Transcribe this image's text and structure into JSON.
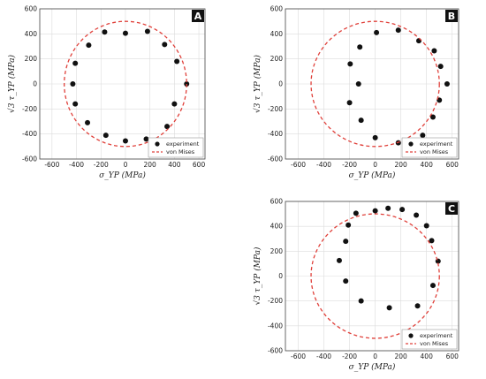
{
  "chart_data": [
    {
      "type": "scatter",
      "panel": "A",
      "xlabel": "σ_YP (MPa)",
      "ylabel": "√3 τ_YP (MPa)",
      "xlim": [
        -700,
        650
      ],
      "ylim": [
        -600,
        600
      ],
      "xticks": [
        -600,
        -400,
        -200,
        0,
        200,
        400,
        600
      ],
      "yticks": [
        -600,
        -400,
        -200,
        0,
        200,
        400,
        600
      ],
      "grid": true,
      "legend_position": "bottom-right",
      "series": [
        {
          "name": "experiment",
          "style": "points",
          "points": [
            [
              0,
              405
            ],
            [
              180,
              420
            ],
            [
              -170,
              415
            ],
            [
              320,
              315
            ],
            [
              -300,
              310
            ],
            [
              420,
              180
            ],
            [
              -410,
              165
            ],
            [
              -430,
              0
            ],
            [
              500,
              0
            ],
            [
              400,
              -160
            ],
            [
              -410,
              -160
            ],
            [
              340,
              -340
            ],
            [
              -310,
              -310
            ],
            [
              -160,
              -410
            ],
            [
              170,
              -440
            ],
            [
              0,
              -455
            ]
          ]
        },
        {
          "name": "von Mises",
          "style": "dashed-circle",
          "radius": 500
        }
      ]
    },
    {
      "type": "scatter",
      "panel": "B",
      "xlabel": "σ_YP (MPa)",
      "ylabel": "√3 τ_YP (MPa)",
      "xlim": [
        -700,
        650
      ],
      "ylim": [
        -600,
        600
      ],
      "xticks": [
        -600,
        -400,
        -200,
        0,
        200,
        400,
        600
      ],
      "yticks": [
        -600,
        -400,
        -200,
        0,
        200,
        400,
        600
      ],
      "grid": true,
      "legend_position": "bottom-right",
      "series": [
        {
          "name": "experiment",
          "style": "points",
          "points": [
            [
              10,
              410
            ],
            [
              180,
              430
            ],
            [
              340,
              345
            ],
            [
              460,
              265
            ],
            [
              510,
              140
            ],
            [
              560,
              0
            ],
            [
              500,
              -130
            ],
            [
              450,
              -265
            ],
            [
              370,
              -410
            ],
            [
              180,
              -470
            ],
            [
              0,
              -430
            ],
            [
              -110,
              -290
            ],
            [
              -200,
              -150
            ],
            [
              -130,
              0
            ],
            [
              -195,
              160
            ],
            [
              -120,
              295
            ]
          ]
        },
        {
          "name": "von Mises",
          "style": "dashed-circle",
          "radius": 500
        }
      ]
    },
    {
      "type": "scatter",
      "panel": "C",
      "xlabel": "σ_YP (MPa)",
      "ylabel": "√3 τ_YP (MPa)",
      "xlim": [
        -700,
        650
      ],
      "ylim": [
        -600,
        600
      ],
      "xticks": [
        -600,
        -400,
        -200,
        0,
        200,
        400,
        600
      ],
      "yticks": [
        -600,
        -400,
        -200,
        0,
        200,
        400,
        600
      ],
      "grid": true,
      "legend_position": "bottom-right",
      "series": [
        {
          "name": "experiment",
          "style": "points",
          "points": [
            [
              -150,
              505
            ],
            [
              0,
              525
            ],
            [
              100,
              545
            ],
            [
              210,
              535
            ],
            [
              320,
              490
            ],
            [
              400,
              405
            ],
            [
              440,
              285
            ],
            [
              490,
              120
            ],
            [
              450,
              -75
            ],
            [
              330,
              -240
            ],
            [
              110,
              -255
            ],
            [
              -110,
              -200
            ],
            [
              -230,
              -40
            ],
            [
              -280,
              125
            ],
            [
              -230,
              280
            ],
            [
              -210,
              410
            ]
          ]
        },
        {
          "name": "von Mises",
          "style": "dashed-circle",
          "radius": 500
        }
      ]
    }
  ],
  "colors": {
    "points": "#111111",
    "von_mises": "#e0403a",
    "grid": "#dcdcdc",
    "panel_letter_bg": "#111111"
  }
}
